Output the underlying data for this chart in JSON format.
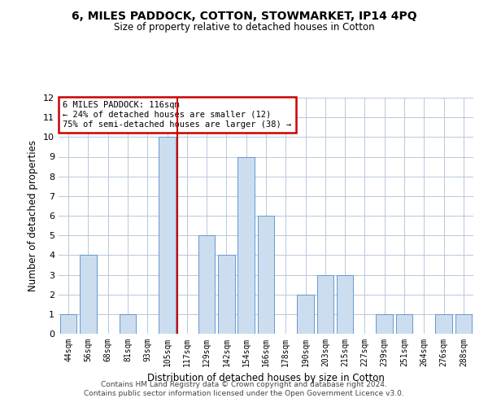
{
  "title1": "6, MILES PADDOCK, COTTON, STOWMARKET, IP14 4PQ",
  "title2": "Size of property relative to detached houses in Cotton",
  "xlabel": "Distribution of detached houses by size in Cotton",
  "ylabel": "Number of detached properties",
  "categories": [
    "44sqm",
    "56sqm",
    "68sqm",
    "81sqm",
    "93sqm",
    "105sqm",
    "117sqm",
    "129sqm",
    "142sqm",
    "154sqm",
    "166sqm",
    "178sqm",
    "190sqm",
    "203sqm",
    "215sqm",
    "227sqm",
    "239sqm",
    "251sqm",
    "264sqm",
    "276sqm",
    "288sqm"
  ],
  "values": [
    1,
    4,
    0,
    1,
    0,
    10,
    0,
    5,
    4,
    9,
    6,
    0,
    2,
    3,
    3,
    0,
    1,
    1,
    0,
    1,
    1
  ],
  "bar_color": "#ccddf0",
  "bar_edge_color": "#6699cc",
  "highlight_line_color": "#cc0000",
  "annotation_text": "6 MILES PADDOCK: 116sqm\n← 24% of detached houses are smaller (12)\n75% of semi-detached houses are larger (38) →",
  "annotation_box_color": "#ffffff",
  "annotation_box_edge_color": "#cc0000",
  "ylim": [
    0,
    12
  ],
  "yticks": [
    0,
    1,
    2,
    3,
    4,
    5,
    6,
    7,
    8,
    9,
    10,
    11,
    12
  ],
  "footer_text": "Contains HM Land Registry data © Crown copyright and database right 2024.\nContains public sector information licensed under the Open Government Licence v3.0.",
  "background_color": "#ffffff",
  "grid_color": "#b8c8dc"
}
